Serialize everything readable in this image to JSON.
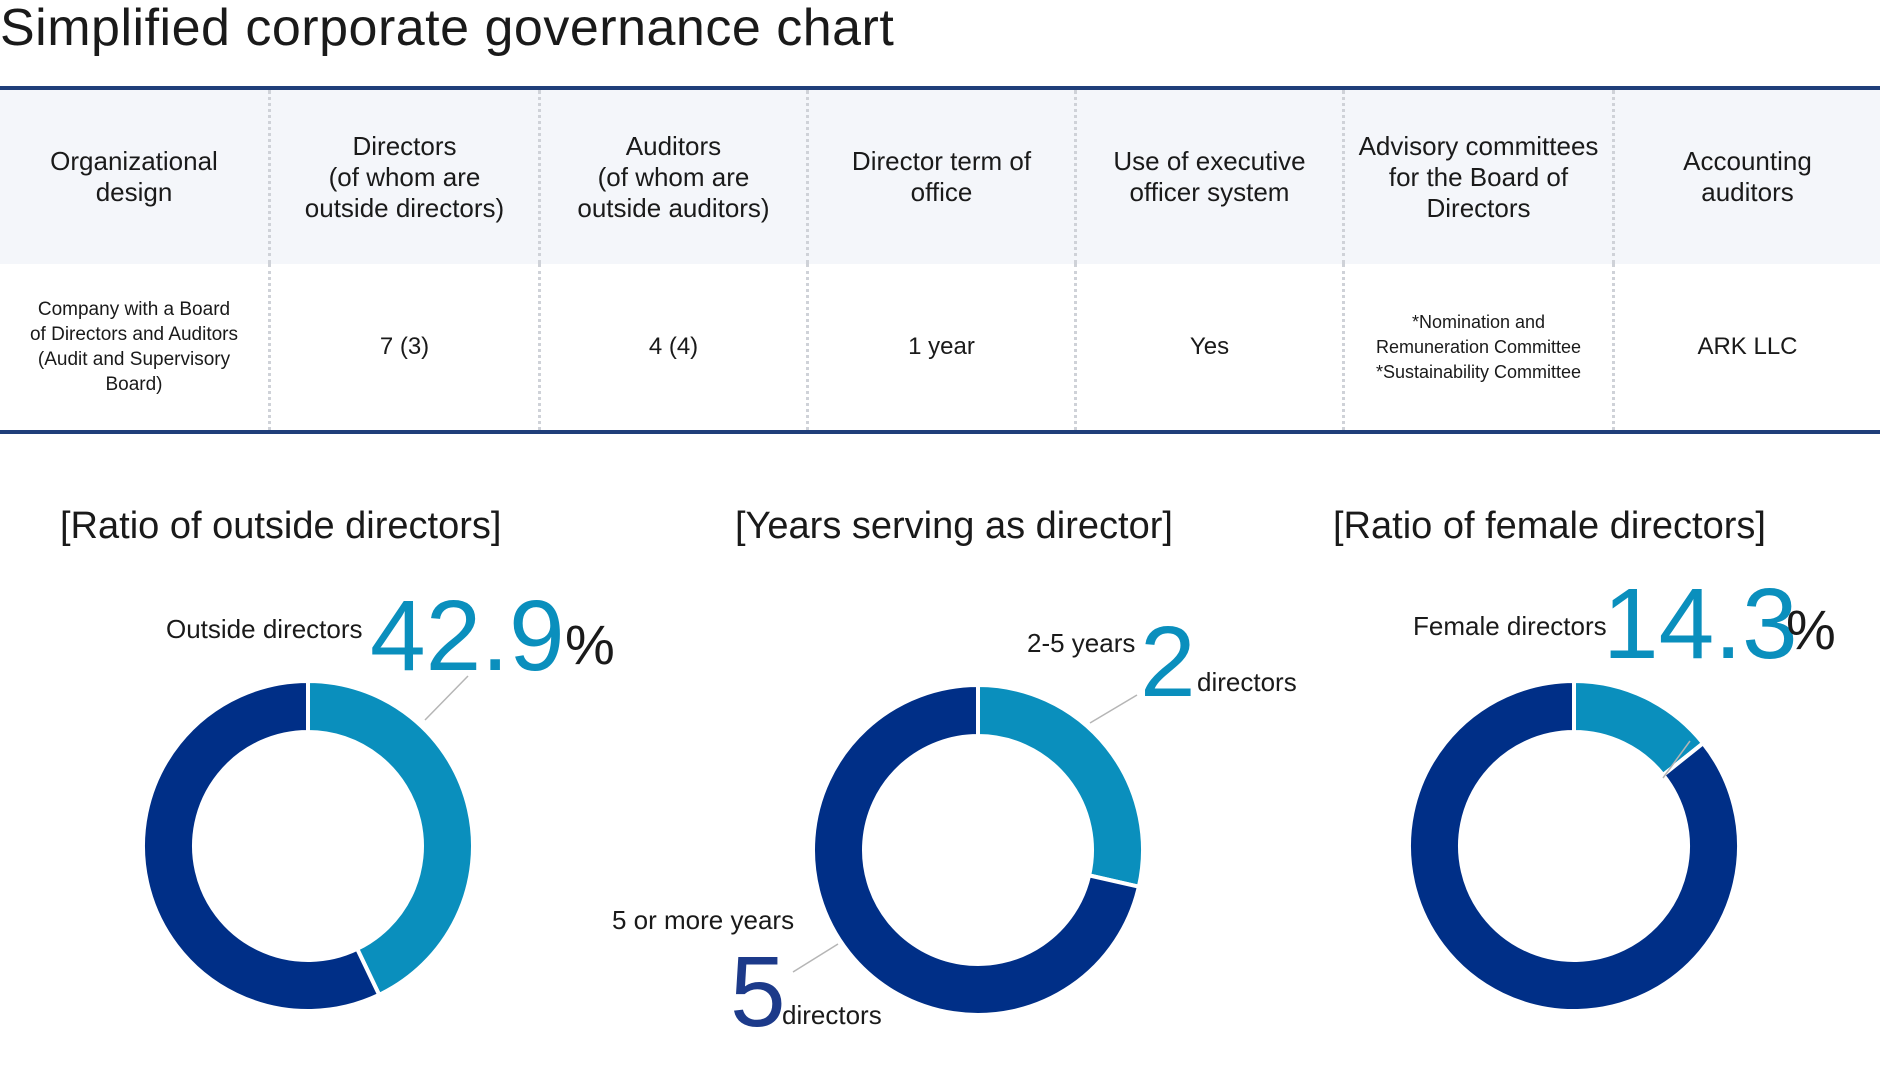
{
  "title": "Simplified corporate governance chart",
  "table": {
    "headers": [
      "Organizational\ndesign",
      "Directors\n(of whom are\noutside directors)",
      "Auditors\n(of whom are\noutside auditors)",
      "Director term of\noffice",
      "Use of executive\nofficer system",
      "Advisory committees\nfor the Board of\nDirectors",
      "Accounting\nauditors"
    ],
    "values": [
      "Company with a Board\nof Directors and Auditors\n(Audit and Supervisory\nBoard)",
      "7 (3)",
      "4 (4)",
      "1 year",
      "Yes",
      "*Nomination and\nRemuneration Committee\n*Sustainability Committee",
      "ARK LLC"
    ]
  },
  "colors": {
    "light_blue": "#0a8fbd",
    "dark_blue": "#002f87",
    "rule": "#1f3e7a"
  },
  "chart_data": [
    {
      "type": "pie",
      "donut": true,
      "title": "[Ratio of outside directors]",
      "slices": [
        {
          "label": "Outside directors",
          "value": 42.9,
          "color": "#0a8fbd"
        },
        {
          "label": "",
          "value": 57.1,
          "color": "#002f87"
        }
      ],
      "annotation": {
        "label": "Outside directors",
        "value": "42.9",
        "unit": "%"
      }
    },
    {
      "type": "pie",
      "donut": true,
      "title": "[Years serving as director]",
      "slices": [
        {
          "label": "2-5 years",
          "value": 2,
          "color": "#0a8fbd"
        },
        {
          "label": "5 or more years",
          "value": 5,
          "color": "#002f87"
        }
      ],
      "annotations": [
        {
          "label": "2-5 years",
          "value": "2",
          "unit": "directors"
        },
        {
          "label": "5 or more years",
          "value": "5",
          "unit": "directors"
        }
      ]
    },
    {
      "type": "pie",
      "donut": true,
      "title": "[Ratio of female directors]",
      "slices": [
        {
          "label": "Female directors",
          "value": 14.3,
          "color": "#0a8fbd"
        },
        {
          "label": "",
          "value": 85.7,
          "color": "#002f87"
        }
      ],
      "annotation": {
        "label": "Female directors",
        "value": "14.3",
        "unit": "%"
      }
    }
  ]
}
